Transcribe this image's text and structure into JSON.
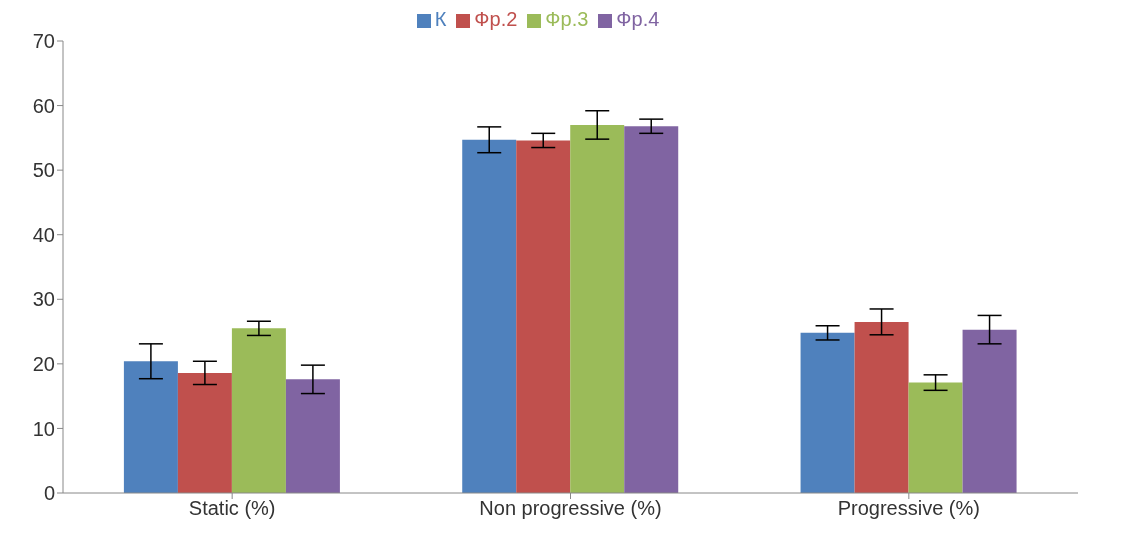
{
  "chart_data": {
    "type": "bar",
    "categories": [
      "Static (%)",
      "Non progressive (%)",
      "Progressive (%)"
    ],
    "series": [
      {
        "name": "К",
        "color": "#4f81bd",
        "values": [
          20.4,
          54.7,
          24.8
        ],
        "errors": [
          2.7,
          2,
          1.1
        ]
      },
      {
        "name": "Фр.2",
        "color": "#c0504d",
        "values": [
          18.6,
          54.6,
          26.5
        ],
        "errors": [
          1.8,
          1.1,
          2
        ]
      },
      {
        "name": "Фр.3",
        "color": "#9bbb59",
        "values": [
          25.5,
          57.0,
          17.1
        ],
        "errors": [
          1.1,
          2.2,
          1.2
        ]
      },
      {
        "name": "Фр.4",
        "color": "#8064a2",
        "values": [
          17.6,
          56.8,
          25.3
        ],
        "errors": [
          2.2,
          1.1,
          2.2
        ]
      }
    ],
    "ylim": [
      0,
      70
    ],
    "yticks": [
      0,
      10,
      20,
      30,
      40,
      50,
      60,
      70
    ],
    "grid": false,
    "legend": "top"
  }
}
